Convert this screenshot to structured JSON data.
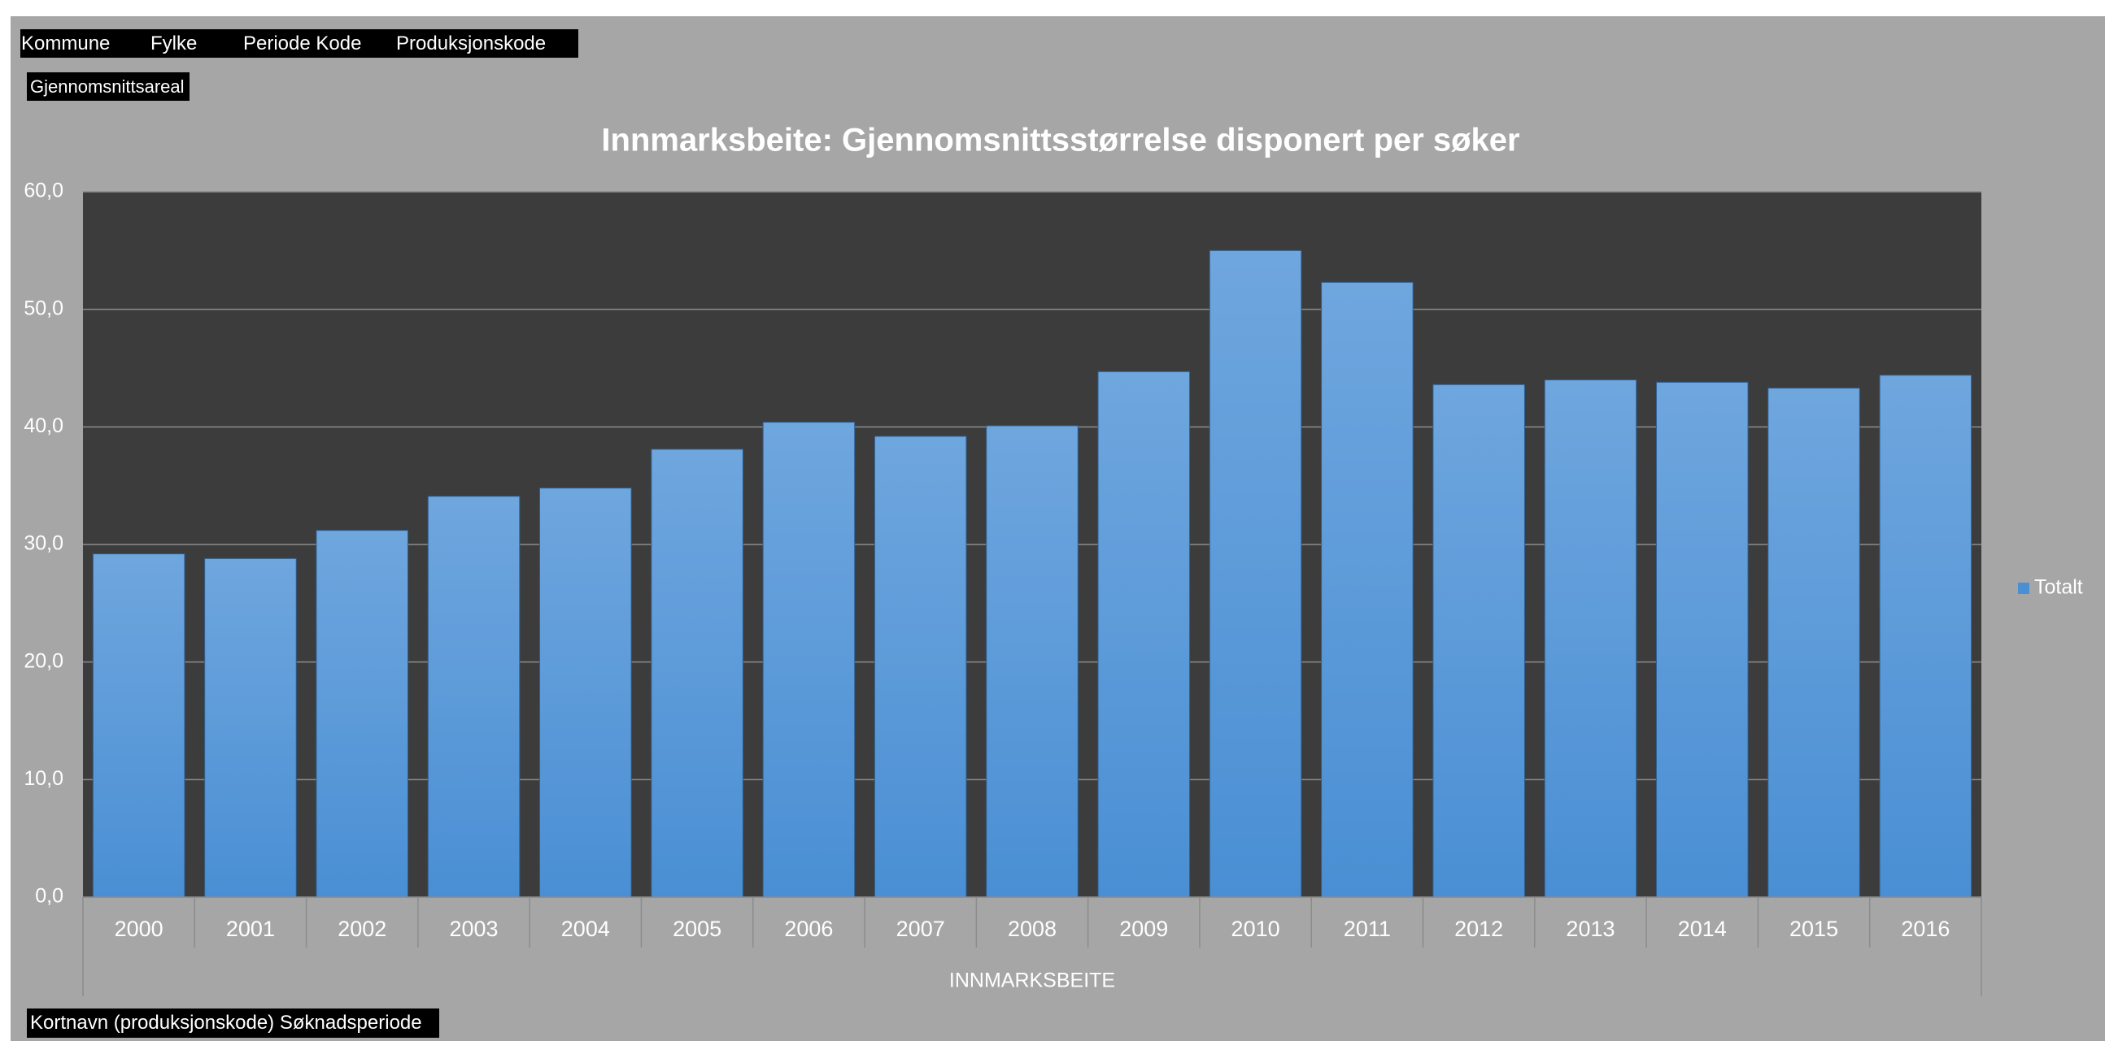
{
  "filters": [
    "Kommune",
    "Fylke",
    "Periode Kode",
    "Produksjonskode"
  ],
  "value_field": "Gjennomsnittsareal",
  "row_field": "Kortnavn (produksjonskode) Søknadsperiode",
  "chart_data": {
    "type": "bar",
    "title": "Innmarksbeite: Gjennomsnittsstørrelse disponert per søker",
    "x_label": "INNMARKSBEITE",
    "categories": [
      "2000",
      "2001",
      "2002",
      "2003",
      "2004",
      "2005",
      "2006",
      "2007",
      "2008",
      "2009",
      "2010",
      "2011",
      "2012",
      "2013",
      "2014",
      "2015",
      "2016"
    ],
    "series": [
      {
        "name": "Totalt",
        "color": "#4a8fd4",
        "values": [
          29.2,
          28.8,
          31.2,
          34.1,
          34.8,
          38.1,
          40.4,
          39.2,
          40.1,
          44.7,
          55.0,
          52.3,
          43.6,
          44.0,
          43.8,
          43.3,
          44.4
        ]
      }
    ],
    "ylim": [
      0,
      60
    ],
    "yticks": [
      {
        "value": 0,
        "label": "0,0"
      },
      {
        "value": 10,
        "label": "10,0"
      },
      {
        "value": 20,
        "label": "20,0"
      },
      {
        "value": 30,
        "label": "30,0"
      },
      {
        "value": 40,
        "label": "40,0"
      },
      {
        "value": 50,
        "label": "50,0"
      },
      {
        "value": 60,
        "label": "60,0"
      }
    ],
    "grid": true,
    "legend": "right"
  }
}
